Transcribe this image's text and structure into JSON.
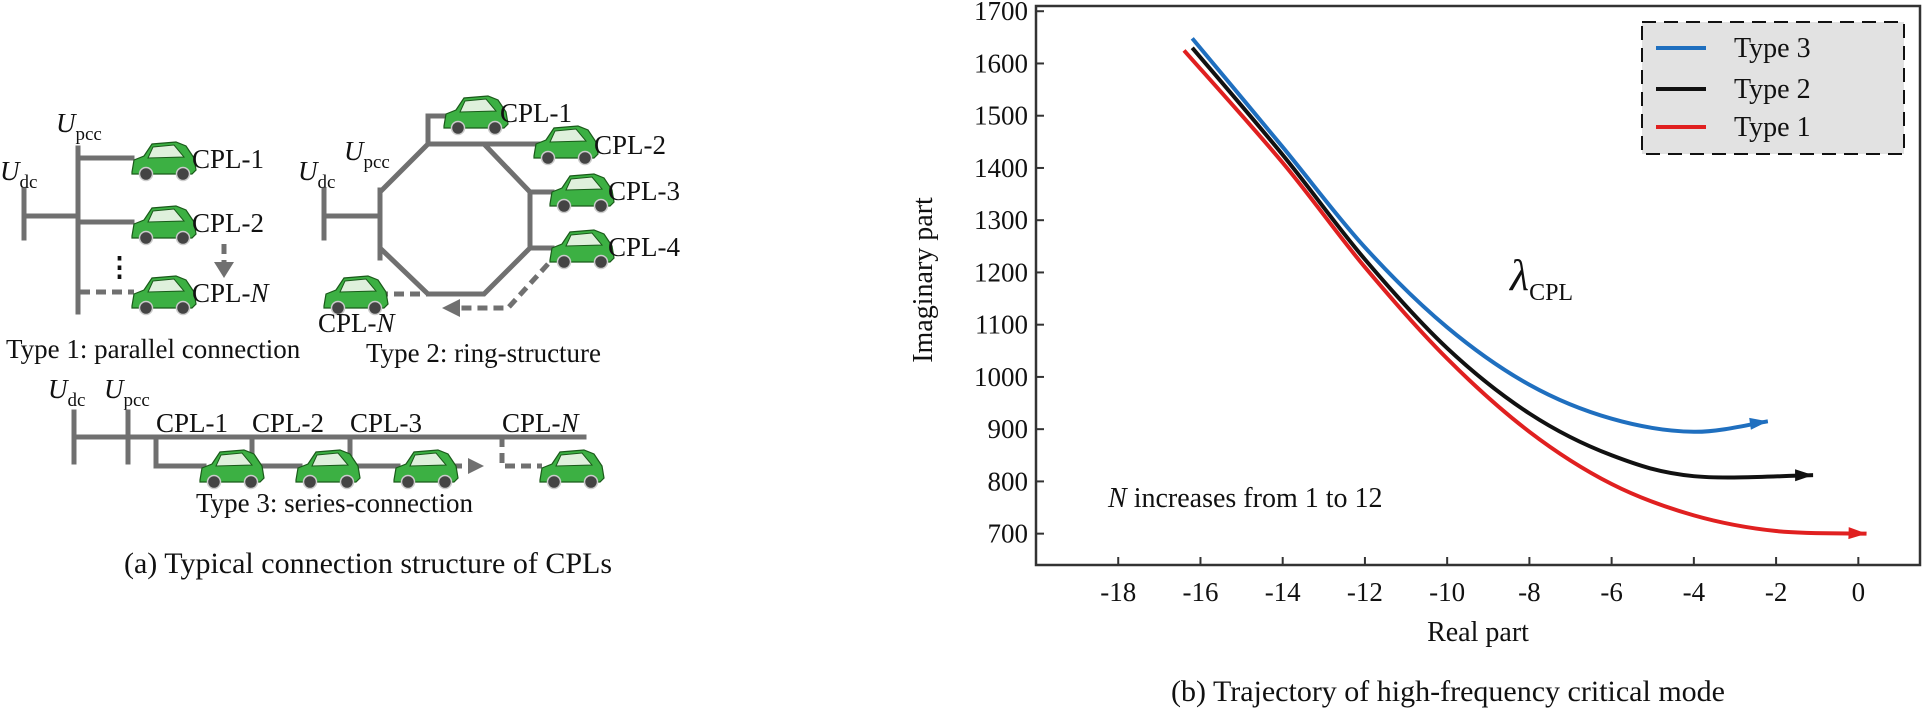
{
  "panel_a": {
    "caption": "(a) Typical connection structure of CPLs",
    "u_dc": {
      "main": "U",
      "sub": "dc"
    },
    "u_pcc": {
      "main": "U",
      "sub": "pcc"
    },
    "type1": {
      "title": "Type 1: parallel connection",
      "loads": [
        "CPL-1",
        "CPL-2"
      ],
      "load_n": {
        "prefix": "CPL-",
        "n": "N"
      },
      "ellipsis": "⋮"
    },
    "type2": {
      "title": "Type 2: ring-structure",
      "loads": [
        "CPL-1",
        "CPL-2",
        "CPL-3",
        "CPL-4"
      ],
      "load_n": {
        "prefix": "CPL-",
        "n": "N"
      }
    },
    "type3": {
      "title": "Type 3: series-connection",
      "loads": [
        "CPL-1",
        "CPL-2",
        "CPL-3"
      ],
      "load_n": {
        "prefix": "CPL-",
        "n": "N"
      }
    },
    "colors": {
      "bus": "#707070",
      "car": "#3cb043"
    }
  },
  "panel_b": {
    "caption": "(b) Trajectory of high-frequency critical mode",
    "annotation_lambda": {
      "main": "λ",
      "sub": "CPL"
    },
    "annotation_n": {
      "n": "N",
      "rest": " increases from 1 to 12"
    }
  },
  "chart_data": {
    "type": "line",
    "title": "",
    "xlabel": "Real part",
    "ylabel": "Imaginary part",
    "xlim": [
      -20,
      1.5
    ],
    "ylim": [
      640,
      1710
    ],
    "xticks": [
      -18,
      -16,
      -14,
      -12,
      -10,
      -8,
      -6,
      -4,
      -2,
      0
    ],
    "yticks": [
      700,
      800,
      900,
      1000,
      1100,
      1200,
      1300,
      1400,
      1500,
      1600,
      1700
    ],
    "legend_position": "top-right",
    "series": [
      {
        "name": "Type 3",
        "color": "#1f6fbf",
        "x": [
          -16.2,
          -14,
          -12,
          -10,
          -8,
          -6,
          -4,
          -2.2
        ],
        "y": [
          1648,
          1440,
          1248,
          1095,
          985,
          920,
          895,
          915
        ]
      },
      {
        "name": "Type 2",
        "color": "#111111",
        "x": [
          -16.2,
          -14,
          -12,
          -10,
          -8,
          -6,
          -4,
          -1.1
        ],
        "y": [
          1630,
          1425,
          1225,
          1055,
          930,
          850,
          810,
          812
        ]
      },
      {
        "name": "Type 1",
        "color": "#e02020",
        "x": [
          -16.4,
          -14,
          -12,
          -10,
          -8,
          -6,
          -4,
          -2,
          0.2
        ],
        "y": [
          1625,
          1410,
          1210,
          1035,
          895,
          795,
          735,
          705,
          700
        ]
      }
    ]
  }
}
